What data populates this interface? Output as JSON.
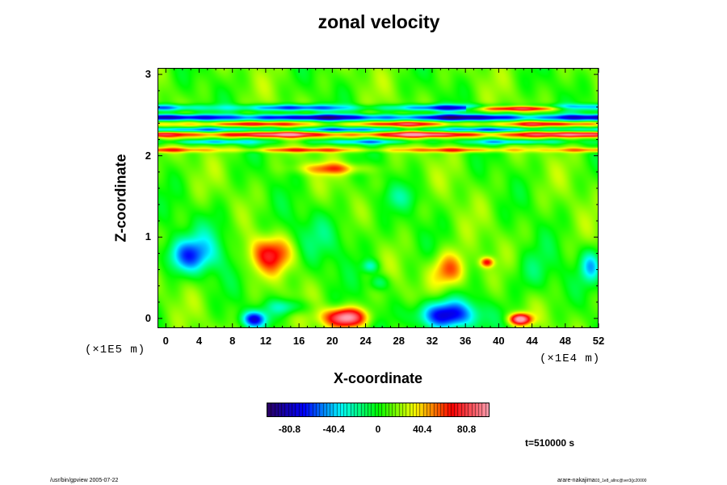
{
  "chart_data": {
    "type": "heatmap",
    "title": "zonal velocity",
    "xlabel": "X-coordinate",
    "ylabel": "Z-coordinate",
    "x_scale_label": "(×1E4 m)",
    "y_scale_label": "(×1E5 m)",
    "x_ticks": [
      "0",
      "4",
      "8",
      "12",
      "16",
      "20",
      "24",
      "28",
      "32",
      "36",
      "40",
      "44",
      "48",
      "52"
    ],
    "y_ticks": [
      "0",
      "1",
      "2",
      "3"
    ],
    "xlim": [
      -1,
      52
    ],
    "ylim": [
      -0.12,
      3.08
    ],
    "colorbar": {
      "ticks": [
        "-80.8",
        "-40.4",
        "0",
        "40.4",
        "80.8"
      ],
      "tick_values": [
        -80.8,
        -40.4,
        0,
        40.4,
        80.8
      ],
      "range": [
        -101,
        101
      ],
      "colors": [
        "#2a0060",
        "#0000ff",
        "#00ffff",
        "#00ff00",
        "#ffff00",
        "#ff0000",
        "#ff9fb0"
      ]
    },
    "background_value": 10,
    "features": [
      {
        "x": 2.5,
        "z": 0.78,
        "value": -60,
        "rx": 3.0,
        "rz": 0.22
      },
      {
        "x": 12.5,
        "z": 0.8,
        "value": 55,
        "rx": 2.8,
        "rz": 0.22
      },
      {
        "x": 10.5,
        "z": 0.0,
        "value": -75,
        "rx": 1.5,
        "rz": 0.1
      },
      {
        "x": 14.5,
        "z": 0.15,
        "value": -35,
        "rx": 2.5,
        "rz": 0.1
      },
      {
        "x": 21.5,
        "z": 0.02,
        "value": 95,
        "rx": 2.5,
        "rz": 0.12
      },
      {
        "x": 33.5,
        "z": 0.05,
        "value": -85,
        "rx": 3.8,
        "rz": 0.18
      },
      {
        "x": 42.5,
        "z": 0.0,
        "value": 95,
        "rx": 1.3,
        "rz": 0.07
      },
      {
        "x": 34.0,
        "z": 0.6,
        "value": 50,
        "rx": 2.2,
        "rz": 0.22
      },
      {
        "x": 38.5,
        "z": 0.7,
        "value": 55,
        "rx": 0.8,
        "rz": 0.06
      },
      {
        "x": 24.5,
        "z": 0.65,
        "value": -35,
        "rx": 1.0,
        "rz": 0.08
      },
      {
        "x": 25.5,
        "z": 0.45,
        "value": -30,
        "rx": 1.2,
        "rz": 0.1
      },
      {
        "x": 51.0,
        "z": 0.65,
        "value": -45,
        "rx": 1.3,
        "rz": 0.2
      },
      {
        "x": 44.0,
        "z": 0.55,
        "value": -20,
        "rx": 3.0,
        "rz": 0.3
      },
      {
        "x": 19.0,
        "z": 1.0,
        "value": -15,
        "rx": 6.0,
        "rz": 0.35
      },
      {
        "x": 28.0,
        "z": 1.5,
        "value": -15,
        "rx": 3.0,
        "rz": 0.15
      },
      {
        "x": 20.0,
        "z": 1.85,
        "value": 40,
        "rx": 4.0,
        "rz": 0.07
      },
      {
        "x": 6.0,
        "z": 1.0,
        "value": -15,
        "rx": 3.0,
        "rz": 0.4
      }
    ],
    "bands": [
      {
        "z": 2.6,
        "value": -50,
        "amplitude": 25,
        "width": 0.04
      },
      {
        "z": 2.59,
        "value": 60,
        "amplitude": 30,
        "width": 0.03,
        "x_from": 36,
        "x_to": 52
      },
      {
        "z": 2.48,
        "value": -80,
        "amplitude": 20,
        "width": 0.04
      },
      {
        "z": 2.4,
        "value": 40,
        "amplitude": 25,
        "width": 0.03
      },
      {
        "z": 2.33,
        "value": -45,
        "amplitude": 20,
        "width": 0.03
      },
      {
        "z": 2.27,
        "value": 65,
        "amplitude": 25,
        "width": 0.035
      },
      {
        "z": 2.18,
        "value": -30,
        "amplitude": 20,
        "width": 0.03
      },
      {
        "z": 2.08,
        "value": 35,
        "amplitude": 15,
        "width": 0.03
      }
    ],
    "time_label": "t=510000 s"
  },
  "footer": {
    "left": "/usr/bin/gpview 2005-07-22",
    "right": "arare-nakajima",
    "right_sub": "03_1e8_allnc@ver3(jc20000"
  }
}
